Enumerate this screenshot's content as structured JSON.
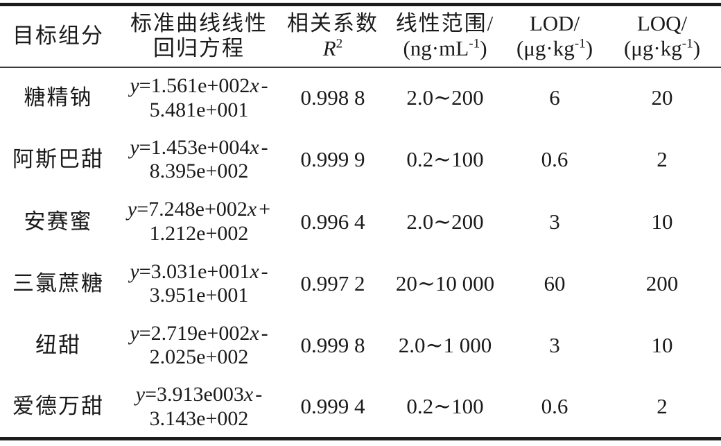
{
  "colors": {
    "text": "#1a1a1a",
    "rule_heavy": "#1c1c1c",
    "rule_light": "#3c3c3c"
  },
  "table": {
    "eq_y": "y",
    "eq_x": "x",
    "columns": [
      {
        "line1": "目标组分"
      },
      {
        "line1": "标准曲线线性",
        "line2": "回归方程"
      },
      {
        "line1": "相关系数",
        "r_var": "R",
        "r_sup": "2"
      },
      {
        "line1": "线性范围/",
        "unit_pre": "(ng·mL",
        "unit_sup": "-1",
        "unit_post": ")"
      },
      {
        "line1": "LOD/",
        "unit_pre": "(μg·kg",
        "unit_sup": "-1",
        "unit_post": ")"
      },
      {
        "line1": "LOQ/",
        "unit_pre": "(μg·kg",
        "unit_sup": "-1",
        "unit_post": ")"
      }
    ],
    "rows": [
      {
        "component": "糖精钠",
        "eq": {
          "lead": "=1.561e+002",
          "sign": "-",
          "intercept": "5.481e+001"
        },
        "r2": "0.998 8",
        "range": "2.0∼200",
        "lod": "6",
        "loq": "20"
      },
      {
        "component": "阿斯巴甜",
        "eq": {
          "lead": "=1.453e+004",
          "sign": "-",
          "intercept": "8.395e+002"
        },
        "r2": "0.999 9",
        "range": "0.2∼100",
        "lod": "0.6",
        "loq": "2"
      },
      {
        "component": "安赛蜜",
        "eq": {
          "lead": "=7.248e+002",
          "sign": "+",
          "intercept": "1.212e+002"
        },
        "r2": "0.996 4",
        "range": "2.0∼200",
        "lod": "3",
        "loq": "10"
      },
      {
        "component": "三氯蔗糖",
        "eq": {
          "lead": "=3.031e+001",
          "sign": "-",
          "intercept": "3.951e+001"
        },
        "r2": "0.997 2",
        "range": "20∼10 000",
        "lod": "60",
        "loq": "200"
      },
      {
        "component": "纽甜",
        "eq": {
          "lead": "=2.719e+002",
          "sign": "-",
          "intercept": "2.025e+002"
        },
        "r2": "0.999 8",
        "range": "2.0∼1 000",
        "lod": "3",
        "loq": "10"
      },
      {
        "component": "爱德万甜",
        "eq": {
          "lead": "=3.913e003",
          "sign": "-",
          "intercept": "3.143e+002"
        },
        "r2": "0.999 4",
        "range": "0.2∼100",
        "lod": "0.6",
        "loq": "2"
      }
    ]
  }
}
